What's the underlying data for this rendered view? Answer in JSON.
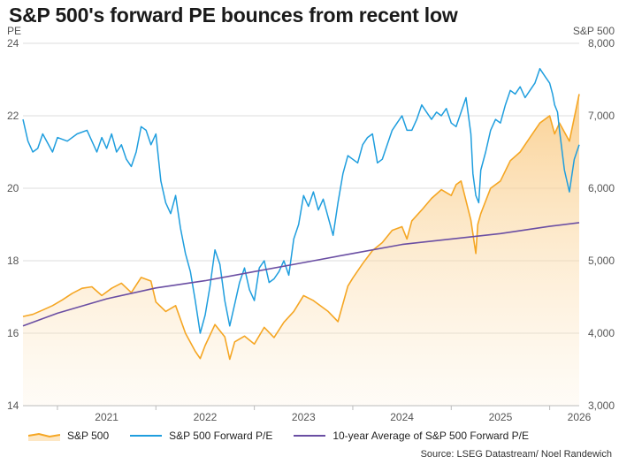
{
  "title": "S&P 500's forward PE bounces from recent low",
  "source": "Source: LSEG Datastream/ Noel Randewich",
  "colors": {
    "sp500": "#f5a623",
    "sp500_fill": "#fde7c4",
    "forward_pe": "#1f9ede",
    "ten_year_avg": "#6a4ea3",
    "grid": "#dddddd",
    "axis_text": "#555555"
  },
  "legend": {
    "sp500": "S&P 500",
    "forward_pe": "S&P 500 Forward P/E",
    "ten_year_avg": "10-year Average of S&P 500 Forward P/E"
  },
  "chart_data": {
    "type": "line",
    "title": "S&P 500's forward PE bounces from recent low",
    "x_axis": {
      "ticks": [
        "2021",
        "2022",
        "2023",
        "2024",
        "2025",
        "2026"
      ],
      "range": [
        2020.65,
        2026.3
      ]
    },
    "y_left": {
      "label": "PE",
      "range": [
        14,
        24
      ],
      "ticks": [
        "14",
        "16",
        "18",
        "20",
        "22",
        "24"
      ]
    },
    "y_right": {
      "label": "S&P 500",
      "range": [
        3000,
        8000
      ],
      "ticks": [
        "3,000",
        "4,000",
        "5,000",
        "6,000",
        "7,000",
        "8,000"
      ]
    },
    "grid": "horizontal",
    "legend_position": "bottom",
    "series": [
      {
        "name": "S&P 500",
        "axis": "right",
        "style": "area",
        "x": [
          2020.65,
          2020.75,
          2020.85,
          2020.95,
          2021.05,
          2021.15,
          2021.25,
          2021.35,
          2021.45,
          2021.55,
          2021.65,
          2021.75,
          2021.85,
          2021.95,
          2022.0,
          2022.1,
          2022.2,
          2022.3,
          2022.4,
          2022.45,
          2022.5,
          2022.6,
          2022.7,
          2022.75,
          2022.8,
          2022.9,
          2023.0,
          2023.1,
          2023.2,
          2023.3,
          2023.4,
          2023.5,
          2023.6,
          2023.75,
          2023.85,
          2023.95,
          2024.0,
          2024.1,
          2024.2,
          2024.3,
          2024.4,
          2024.5,
          2024.55,
          2024.6,
          2024.7,
          2024.8,
          2024.9,
          2025.0,
          2025.05,
          2025.1,
          2025.2,
          2025.25,
          2025.27,
          2025.3,
          2025.4,
          2025.5,
          2025.6,
          2025.7,
          2025.8,
          2025.9,
          2026.0,
          2026.05,
          2026.1,
          2026.2,
          2026.3
        ],
        "values": [
          4230,
          4260,
          4320,
          4380,
          4460,
          4550,
          4620,
          4640,
          4520,
          4620,
          4690,
          4560,
          4770,
          4720,
          4430,
          4300,
          4380,
          4000,
          3750,
          3650,
          3830,
          4120,
          3950,
          3640,
          3880,
          3960,
          3850,
          4080,
          3940,
          4150,
          4300,
          4520,
          4450,
          4300,
          4160,
          4650,
          4760,
          4960,
          5140,
          5250,
          5420,
          5470,
          5300,
          5550,
          5700,
          5860,
          5980,
          5900,
          6050,
          6100,
          5560,
          5100,
          5500,
          5650,
          6000,
          6100,
          6380,
          6500,
          6700,
          6900,
          7000,
          6750,
          6900,
          6650,
          7300
        ]
      },
      {
        "name": "S&P 500 Forward P/E",
        "axis": "left",
        "style": "line",
        "x": [
          2020.65,
          2020.7,
          2020.75,
          2020.8,
          2020.85,
          2020.95,
          2021.0,
          2021.1,
          2021.2,
          2021.3,
          2021.4,
          2021.45,
          2021.5,
          2021.55,
          2021.6,
          2021.65,
          2021.7,
          2021.75,
          2021.8,
          2021.85,
          2021.9,
          2021.95,
          2022.0,
          2022.05,
          2022.1,
          2022.15,
          2022.2,
          2022.25,
          2022.3,
          2022.35,
          2022.4,
          2022.45,
          2022.5,
          2022.55,
          2022.6,
          2022.65,
          2022.7,
          2022.75,
          2022.8,
          2022.85,
          2022.9,
          2022.95,
          2023.0,
          2023.05,
          2023.1,
          2023.15,
          2023.2,
          2023.25,
          2023.3,
          2023.35,
          2023.4,
          2023.45,
          2023.5,
          2023.55,
          2023.6,
          2023.65,
          2023.7,
          2023.75,
          2023.8,
          2023.85,
          2023.9,
          2023.95,
          2024.0,
          2024.05,
          2024.1,
          2024.15,
          2024.2,
          2024.25,
          2024.3,
          2024.35,
          2024.4,
          2024.45,
          2024.5,
          2024.55,
          2024.6,
          2024.65,
          2024.7,
          2024.75,
          2024.8,
          2024.85,
          2024.9,
          2024.95,
          2025.0,
          2025.05,
          2025.1,
          2025.15,
          2025.2,
          2025.22,
          2025.25,
          2025.28,
          2025.3,
          2025.35,
          2025.4,
          2025.45,
          2025.5,
          2025.55,
          2025.6,
          2025.65,
          2025.7,
          2025.75,
          2025.8,
          2025.85,
          2025.9,
          2025.95,
          2026.0,
          2026.03,
          2026.05,
          2026.08,
          2026.1,
          2026.15,
          2026.2,
          2026.25,
          2026.3
        ],
        "values": [
          21.9,
          21.3,
          21.0,
          21.1,
          21.5,
          21.0,
          21.4,
          21.3,
          21.5,
          21.6,
          21.0,
          21.4,
          21.1,
          21.5,
          21.0,
          21.2,
          20.8,
          20.6,
          21.0,
          21.7,
          21.6,
          21.2,
          21.5,
          20.2,
          19.6,
          19.3,
          19.8,
          18.9,
          18.2,
          17.7,
          16.9,
          16.0,
          16.5,
          17.3,
          18.3,
          17.9,
          16.9,
          16.2,
          16.8,
          17.4,
          17.8,
          17.2,
          16.9,
          17.8,
          18.0,
          17.4,
          17.5,
          17.7,
          18.0,
          17.6,
          18.6,
          19.0,
          19.8,
          19.5,
          19.9,
          19.4,
          19.7,
          19.2,
          18.7,
          19.6,
          20.4,
          20.9,
          20.8,
          20.7,
          21.2,
          21.4,
          21.5,
          20.7,
          20.8,
          21.2,
          21.6,
          21.8,
          22.0,
          21.6,
          21.6,
          21.9,
          22.3,
          22.1,
          21.9,
          22.1,
          22.0,
          22.2,
          21.8,
          21.7,
          22.1,
          22.5,
          21.5,
          20.4,
          19.8,
          19.6,
          20.5,
          21.0,
          21.6,
          21.9,
          21.8,
          22.3,
          22.7,
          22.6,
          22.8,
          22.5,
          22.7,
          22.9,
          23.3,
          23.1,
          22.9,
          22.6,
          22.3,
          22.1,
          21.6,
          20.5,
          19.9,
          20.8,
          21.2
        ]
      },
      {
        "name": "10-year Average of S&P 500 Forward P/E",
        "axis": "left",
        "style": "line",
        "x": [
          2020.65,
          2021.0,
          2021.5,
          2022.0,
          2022.5,
          2023.0,
          2023.5,
          2024.0,
          2024.5,
          2025.0,
          2025.5,
          2026.0,
          2026.3
        ],
        "values": [
          16.2,
          16.55,
          16.95,
          17.25,
          17.45,
          17.7,
          17.95,
          18.2,
          18.45,
          18.6,
          18.75,
          18.95,
          19.05
        ]
      }
    ]
  }
}
